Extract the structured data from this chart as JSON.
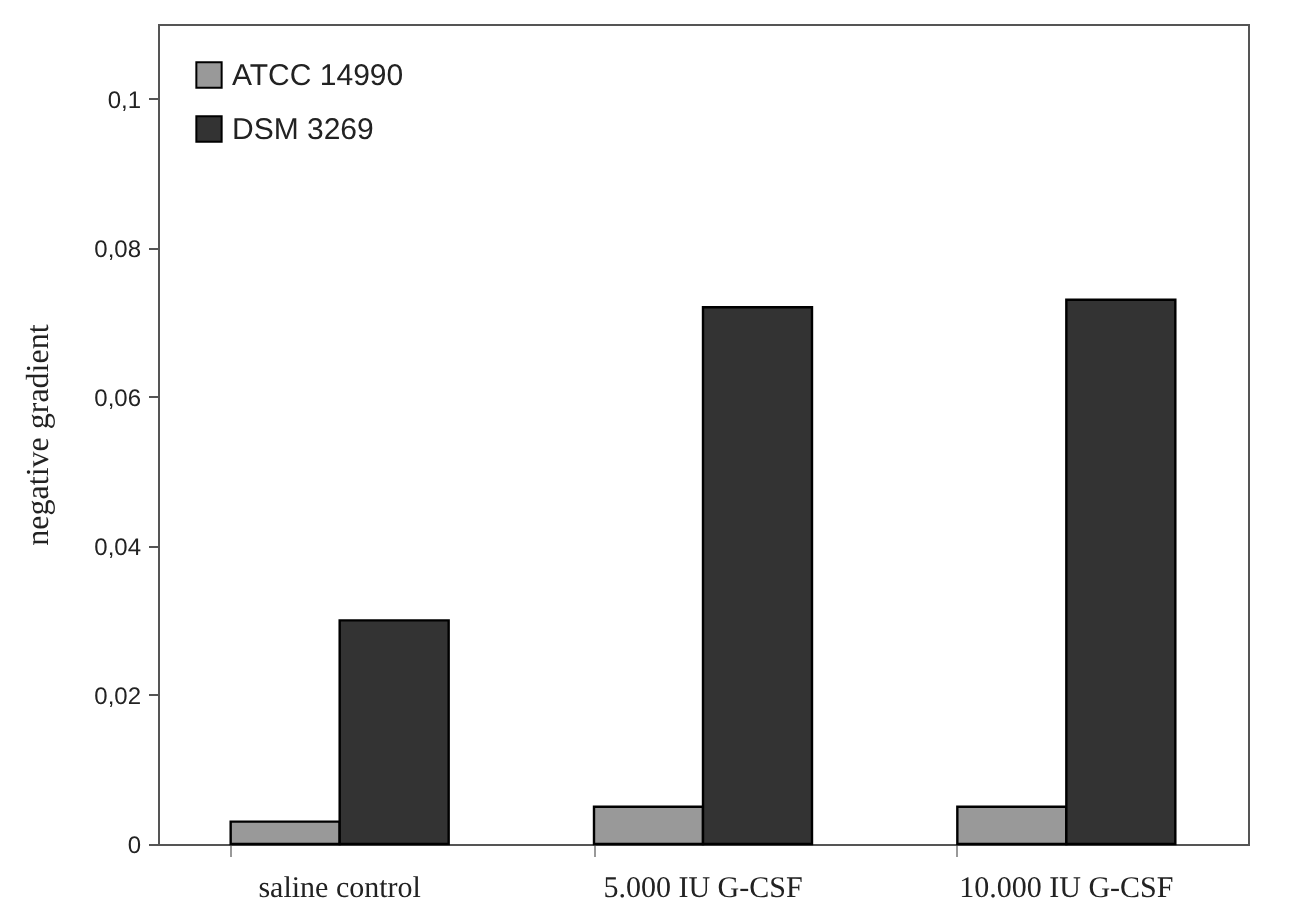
{
  "chart_data": {
    "type": "bar",
    "ylabel": "negative gradient",
    "categories": [
      "saline control",
      "5.000 IU G-CSF",
      "10.000 IU G-CSF"
    ],
    "series": [
      {
        "name": "ATCC 14990",
        "color": "#999999",
        "values": [
          0.003,
          0.005,
          0.005
        ]
      },
      {
        "name": "DSM 3269",
        "color": "#333333",
        "values": [
          0.03,
          0.072,
          0.073
        ]
      }
    ],
    "ylim": [
      0,
      0.11
    ],
    "yticks": [
      0,
      {
        "value": 0.02,
        "label": "0,02"
      },
      {
        "value": 0.04,
        "label": "0,04"
      },
      {
        "value": 0.06,
        "label": "0,06"
      },
      {
        "value": 0.08,
        "label": "0,08"
      },
      {
        "value": 0.1,
        "label": "0,1"
      }
    ],
    "grid": false,
    "legend": "top left"
  }
}
